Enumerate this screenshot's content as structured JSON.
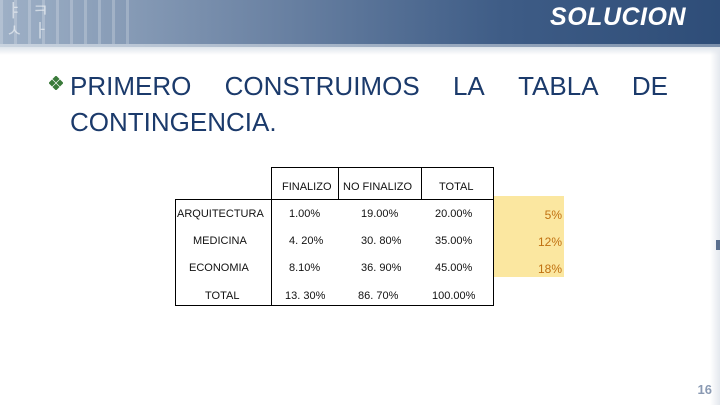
{
  "header": {
    "title": "SOLUCION"
  },
  "body": {
    "line1_words": [
      "PRIMERO",
      "CONSTRUIMOS",
      "LA",
      "TABLA",
      "DE"
    ],
    "line2": "CONTINGENCIA."
  },
  "table": {
    "columns": [
      "FINALIZO",
      "NO FINALIZO",
      "TOTAL"
    ],
    "rows": [
      {
        "label": "ARQUITECTURA",
        "values": [
          "1.00%",
          "19.00%",
          "20.00%"
        ]
      },
      {
        "label": "MEDICINA",
        "values": [
          "4. 20%",
          "30. 80%",
          "35.00%"
        ]
      },
      {
        "label": "ECONOMIA",
        "values": [
          "8.10%",
          "36. 90%",
          "45.00%"
        ]
      },
      {
        "label": "TOTAL",
        "values": [
          "13. 30%",
          "86. 70%",
          "100.00%"
        ]
      }
    ]
  },
  "side_values": [
    "5%",
    "12%",
    "18%"
  ],
  "colors": {
    "accent": "#1b3a6b",
    "highlight": "#fbe7a0",
    "highlight_text": "#c07010",
    "bullet": "#3a7a3a"
  },
  "page_number": "16"
}
